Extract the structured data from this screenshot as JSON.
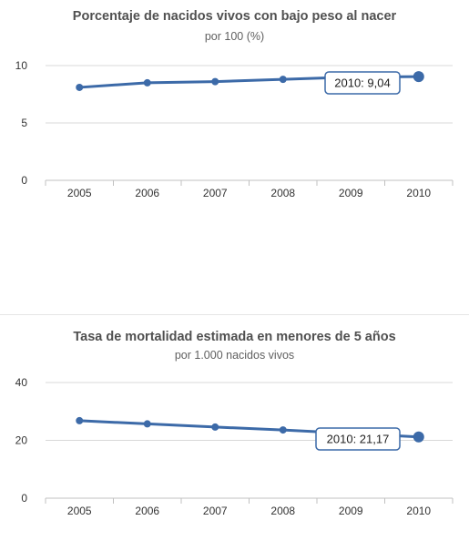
{
  "colors": {
    "series": "#3c6aa8",
    "grid": "#d9d9d9",
    "axis": "#c0c0c0",
    "tooltip_border": "#3c6aa8"
  },
  "chart_data": [
    {
      "type": "line",
      "title": "Porcentaje de nacidos vivos con bajo peso al nacer",
      "subtitle": "por 100 (%)",
      "categories": [
        "2005",
        "2006",
        "2007",
        "2008",
        "2009",
        "2010"
      ],
      "series": [
        {
          "values": [
            8.1,
            8.5,
            8.6,
            8.8,
            9.0,
            9.04
          ]
        }
      ],
      "ylim": [
        0,
        10
      ],
      "yticks": [
        "0",
        "5",
        "10"
      ],
      "grid": true,
      "tooltip": "2010: 9,04"
    },
    {
      "type": "line",
      "title": "Tasa de mortalidad estimada en menores de 5 años",
      "subtitle": "por 1.000 nacidos vivos",
      "categories": [
        "2005",
        "2006",
        "2007",
        "2008",
        "2009",
        "2010"
      ],
      "series": [
        {
          "values": [
            26.8,
            25.7,
            24.6,
            23.6,
            22.4,
            21.17
          ]
        }
      ],
      "ylim": [
        0,
        40
      ],
      "yticks": [
        "0",
        "20",
        "40"
      ],
      "grid": true,
      "tooltip": "2010: 21,17"
    }
  ]
}
